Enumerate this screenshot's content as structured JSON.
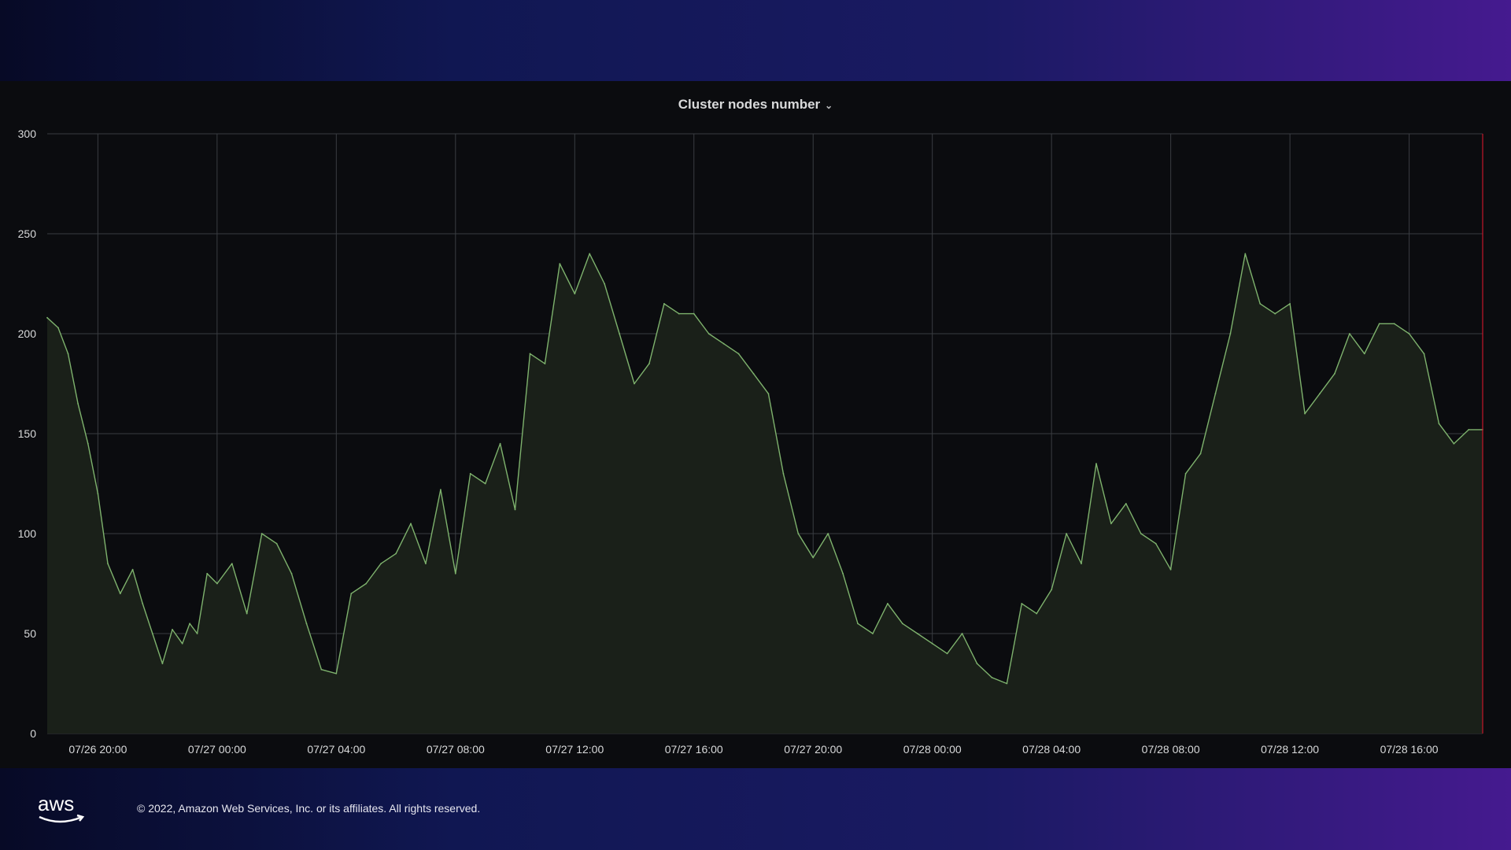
{
  "footer": {
    "logo_text": "aws",
    "copyright": "© 2022, Amazon Web Services, Inc. or its affiliates. All rights reserved."
  },
  "colors": {
    "line": "#7eb26d",
    "fill": "#1a2019",
    "grid": "#3a3d42",
    "threshold": "#c4162a",
    "tick_text": "#d8d9da"
  },
  "chart_data": {
    "type": "area",
    "title": "Cluster nodes number",
    "title_icon": "chevron-down-icon",
    "xlabel": "",
    "ylabel": "",
    "ylim": [
      0,
      300
    ],
    "yticks": [
      0,
      50,
      100,
      150,
      200,
      250,
      300
    ],
    "xlim": [
      "07/26 18:18",
      "07/28 18:28"
    ],
    "xticks": [
      "07/26 20:00",
      "07/27 00:00",
      "07/27 04:00",
      "07/27 08:00",
      "07/27 12:00",
      "07/27 16:00",
      "07/27 20:00",
      "07/28 00:00",
      "07/28 04:00",
      "07/28 08:00",
      "07/28 12:00",
      "07/28 16:00"
    ],
    "grid": true,
    "series": [
      {
        "x": [
          "07/26 18:18",
          "07/26 18:40",
          "07/26 19:00",
          "07/26 19:20",
          "07/26 19:40",
          "07/26 20:00",
          "07/26 20:20",
          "07/26 20:45",
          "07/26 21:10",
          "07/26 21:30",
          "07/26 21:50",
          "07/26 22:10",
          "07/26 22:30",
          "07/26 22:50",
          "07/26 23:05",
          "07/26 23:20",
          "07/26 23:40",
          "07/27 00:00",
          "07/27 00:30",
          "07/27 01:00",
          "07/27 01:30",
          "07/27 02:00",
          "07/27 02:30",
          "07/27 03:00",
          "07/27 03:30",
          "07/27 04:00",
          "07/27 04:30",
          "07/27 05:00",
          "07/27 05:30",
          "07/27 06:00",
          "07/27 06:30",
          "07/27 07:00",
          "07/27 07:30",
          "07/27 08:00",
          "07/27 08:30",
          "07/27 09:00",
          "07/27 09:30",
          "07/27 10:00",
          "07/27 10:30",
          "07/27 11:00",
          "07/27 11:30",
          "07/27 12:00",
          "07/27 12:30",
          "07/27 13:00",
          "07/27 13:30",
          "07/27 14:00",
          "07/27 14:30",
          "07/27 15:00",
          "07/27 15:30",
          "07/27 16:00",
          "07/27 16:30",
          "07/27 17:00",
          "07/27 17:30",
          "07/27 18:00",
          "07/27 18:30",
          "07/27 19:00",
          "07/27 19:30",
          "07/27 20:00",
          "07/27 20:30",
          "07/27 21:00",
          "07/27 21:30",
          "07/27 22:00",
          "07/27 22:30",
          "07/27 23:00",
          "07/27 23:30",
          "07/28 00:00",
          "07/28 00:30",
          "07/28 01:00",
          "07/28 01:30",
          "07/28 02:00",
          "07/28 02:30",
          "07/28 03:00",
          "07/28 03:30",
          "07/28 04:00",
          "07/28 04:30",
          "07/28 05:00",
          "07/28 05:30",
          "07/28 06:00",
          "07/28 06:30",
          "07/28 07:00",
          "07/28 07:30",
          "07/28 08:00",
          "07/28 08:30",
          "07/28 09:00",
          "07/28 09:30",
          "07/28 10:00",
          "07/28 10:30",
          "07/28 11:00",
          "07/28 11:30",
          "07/28 12:00",
          "07/28 12:30",
          "07/28 13:00",
          "07/28 13:30",
          "07/28 14:00",
          "07/28 14:30",
          "07/28 15:00",
          "07/28 15:30",
          "07/28 16:00",
          "07/28 16:30",
          "07/28 17:00",
          "07/28 17:30",
          "07/28 18:00",
          "07/28 18:28"
        ],
        "values": [
          208,
          203,
          190,
          165,
          145,
          120,
          85,
          70,
          82,
          65,
          50,
          35,
          52,
          45,
          55,
          50,
          80,
          75,
          85,
          60,
          100,
          95,
          80,
          55,
          32,
          30,
          70,
          75,
          85,
          90,
          105,
          85,
          122,
          80,
          130,
          125,
          145,
          112,
          190,
          185,
          235,
          220,
          240,
          225,
          200,
          175,
          185,
          215,
          210,
          210,
          200,
          195,
          190,
          180,
          170,
          130,
          100,
          88,
          100,
          80,
          55,
          50,
          65,
          55,
          50,
          45,
          40,
          50,
          35,
          28,
          25,
          65,
          60,
          72,
          100,
          85,
          135,
          105,
          115,
          100,
          95,
          82,
          130,
          140,
          170,
          200,
          240,
          215,
          210,
          215,
          160,
          170,
          180,
          200,
          190,
          205,
          205,
          200,
          190,
          155,
          145,
          152,
          152
        ]
      }
    ]
  }
}
